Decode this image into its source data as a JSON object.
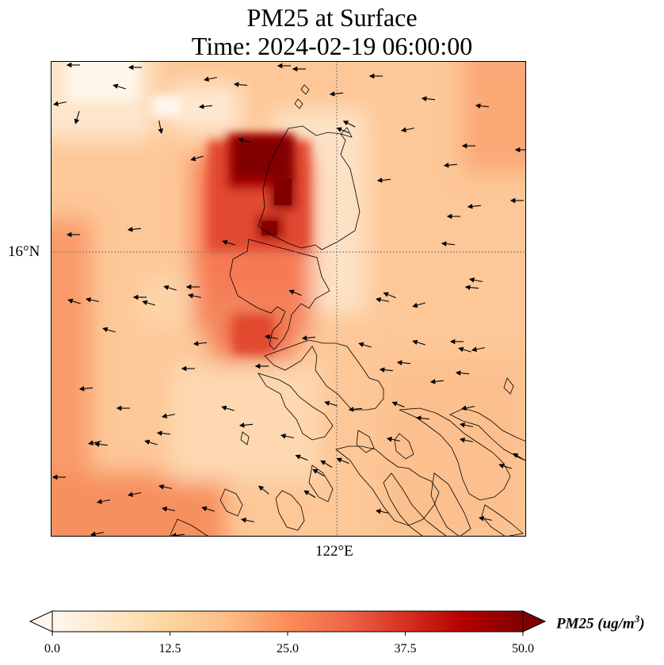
{
  "title": {
    "line1": "PM25 at Surface",
    "line2": "Time: 2024-02-19 06:00:00"
  },
  "map": {
    "lat_label": "16°N",
    "lon_label": "122°E",
    "gridline_color": "#777777",
    "coastline_color": "#000000"
  },
  "colorbar": {
    "label_main": "PM25 (ug/m",
    "label_sup": "3",
    "label_close": ")",
    "ticks": [
      "0.0",
      "12.5",
      "25.0",
      "37.5",
      "50.0"
    ],
    "min": 0,
    "max": 50,
    "extend": "both",
    "cmap": "OrRd",
    "stops": [
      "#fff7ec",
      "#fee8c8",
      "#fdd49e",
      "#fdbb84",
      "#fc8d59",
      "#ef6548",
      "#d7301f",
      "#b30000",
      "#7f0000"
    ]
  }
}
